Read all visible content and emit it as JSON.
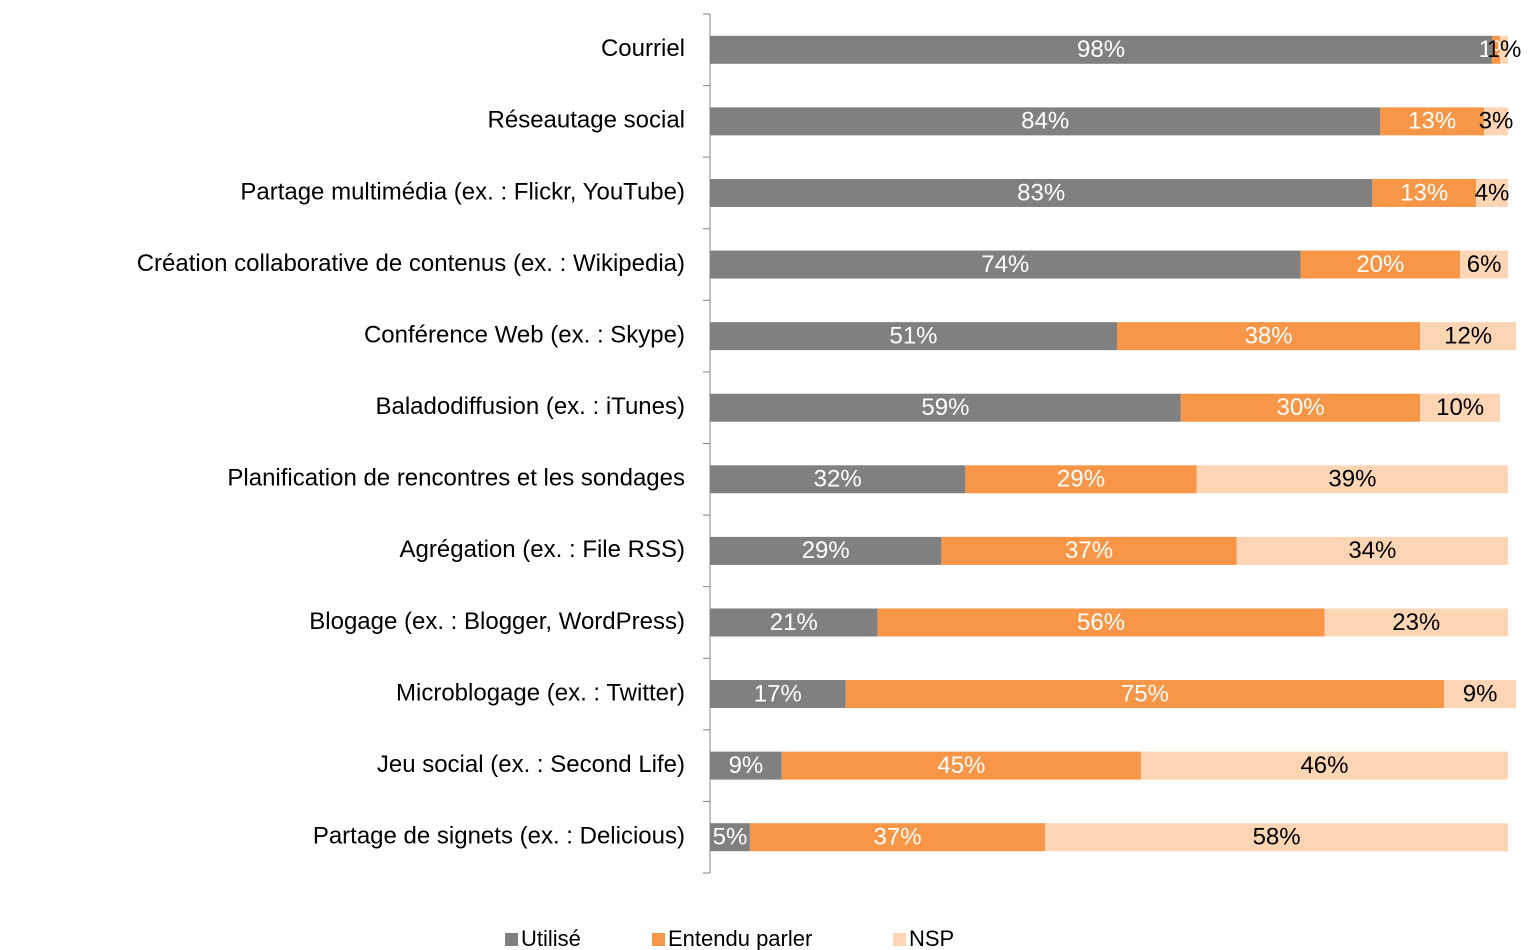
{
  "chart_data": {
    "type": "stacked_bar_horizontal",
    "categories": [
      "Courriel",
      "Réseautage social",
      "Partage multimédia (ex. : Flickr, YouTube)",
      "Création collaborative de contenus (ex. : Wikipedia)",
      "Conférence Web (ex. : Skype)",
      "Baladodiffusion (ex. : iTunes)",
      "Planification de rencontres et les sondages",
      "Agrégation (ex. : File RSS)",
      "Blogage (ex. : Blogger, WordPress)",
      "Microblogage (ex. : Twitter)",
      "Jeu social (ex. : Second Life)",
      "Partage de signets (ex. : Delicious)"
    ],
    "series": [
      {
        "name": "Utilisé",
        "color": "#808080",
        "label_color": "#ffffff",
        "values": [
          98,
          84,
          83,
          74,
          51,
          59,
          32,
          29,
          21,
          17,
          9,
          5
        ],
        "value_labels": [
          "98%",
          "84%",
          "83%",
          "74%",
          "51%",
          "59%",
          "32%",
          "29%",
          "21%",
          "17%",
          "9%",
          "5%"
        ]
      },
      {
        "name": "Entendu parler",
        "color": "#f79646",
        "label_color": "#ffffff",
        "values": [
          1,
          13,
          13,
          20,
          38,
          30,
          29,
          37,
          56,
          75,
          45,
          37
        ],
        "value_labels": [
          "1%",
          "13%",
          "13%",
          "20%",
          "38%",
          "30%",
          "29%",
          "37%",
          "56%",
          "75%",
          "45%",
          "37%"
        ]
      },
      {
        "name": "NSP",
        "color": "#fcd5b5",
        "label_color": "#000000",
        "values": [
          1,
          3,
          4,
          6,
          12,
          10,
          39,
          34,
          23,
          9,
          46,
          58
        ],
        "value_labels": [
          "1%",
          "3%",
          "4%",
          "6%",
          "12%",
          "10%",
          "39%",
          "34%",
          "23%",
          "9%",
          "46%",
          "58%"
        ]
      }
    ],
    "legend": "bottom"
  }
}
